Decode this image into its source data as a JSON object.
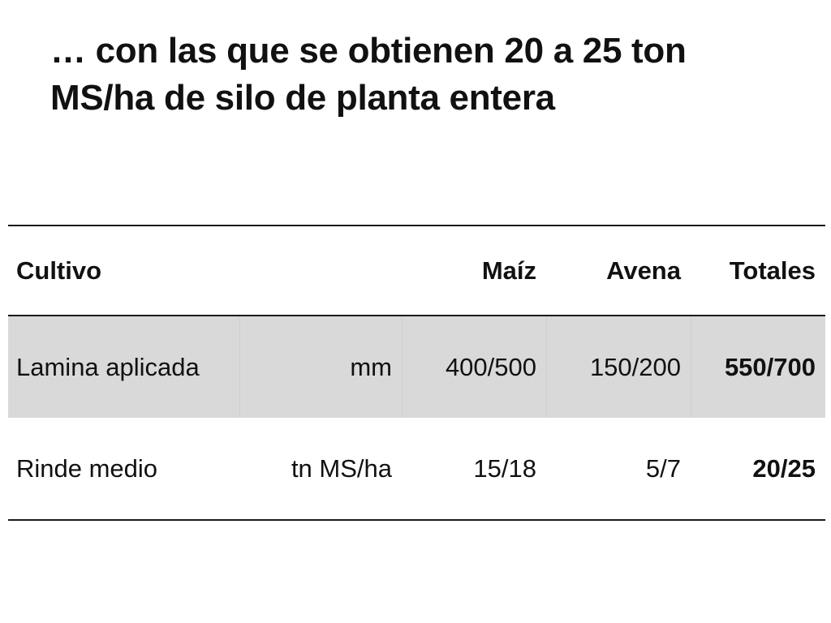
{
  "slide": {
    "title": "… con las que se obtienen 20 a 25 ton MS/ha de silo de planta entera"
  },
  "table": {
    "headers": [
      "Cultivo",
      "",
      "Maíz",
      "Avena",
      "Totales"
    ],
    "rows": [
      [
        "Lamina aplicada",
        "mm",
        "400/500",
        "150/200",
        "550/700"
      ],
      [
        "Rinde medio",
        "tn MS/ha",
        "15/18",
        "5/7",
        "20/25"
      ]
    ]
  },
  "colors": {
    "text": "#111111",
    "shaded_row": "#d9d9d9",
    "rule": "#1a1a1a"
  }
}
